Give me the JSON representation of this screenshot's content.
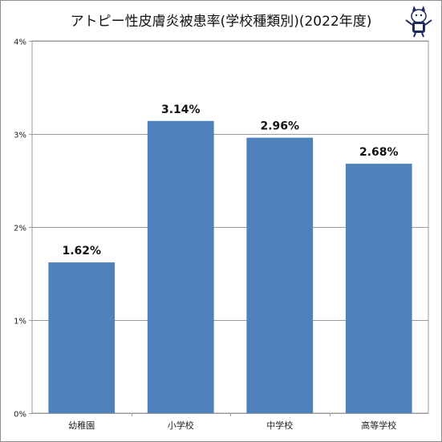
{
  "chart_data": {
    "type": "bar",
    "title": "アトピー性皮膚炎被患率(学校種類別)(2022年度)",
    "categories": [
      "幼稚園",
      "小学校",
      "中学校",
      "高等学校"
    ],
    "values": [
      1.62,
      3.14,
      2.96,
      2.68
    ],
    "value_labels": [
      "1.62%",
      "3.14%",
      "2.96%",
      "2.68%"
    ],
    "ylim": [
      0,
      4
    ],
    "yticks": [
      0,
      1,
      2,
      3,
      4
    ],
    "ytick_labels": [
      "0%",
      "1%",
      "2%",
      "3%",
      "4%"
    ],
    "grid": true,
    "bar_color": "#4f81bd"
  },
  "logo": {
    "icon": "cat-mascot-icon"
  }
}
